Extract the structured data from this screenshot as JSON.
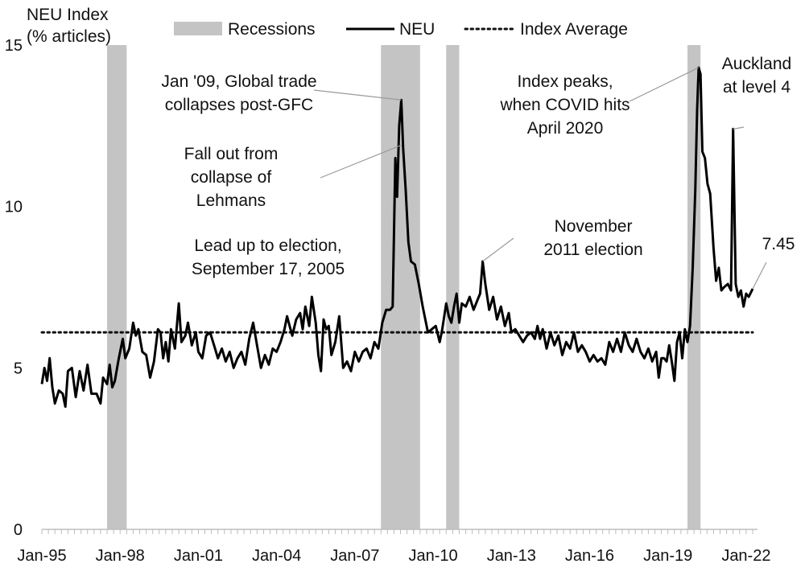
{
  "chart_data": {
    "type": "line",
    "ylabel": [
      "NEU Index",
      "(% articles)"
    ],
    "ylim": [
      0,
      15
    ],
    "yticks": [
      0,
      5,
      10,
      15
    ],
    "xticks": [
      "Jan-95",
      "Jan-98",
      "Jan-01",
      "Jan-04",
      "Jan-07",
      "Jan-10",
      "Jan-13",
      "Jan-16",
      "Jan-19",
      "Jan-22"
    ],
    "x_start": 1995.0,
    "x_end": 2022.25,
    "legend": [
      "Recessions",
      "NEU",
      "Index Average"
    ],
    "legend_position": "top",
    "average": 6.1,
    "recessions": [
      [
        1997.5,
        1998.25
      ],
      [
        2008.0,
        2009.5
      ],
      [
        2010.5,
        2011.0
      ],
      [
        2019.75,
        2020.25
      ]
    ],
    "series": [
      {
        "name": "NEU",
        "points": [
          [
            1995.0,
            4.5
          ],
          [
            1995.1,
            5.0
          ],
          [
            1995.2,
            4.6
          ],
          [
            1995.3,
            5.3
          ],
          [
            1995.4,
            4.4
          ],
          [
            1995.5,
            3.9
          ],
          [
            1995.65,
            4.3
          ],
          [
            1995.8,
            4.2
          ],
          [
            1995.9,
            3.8
          ],
          [
            1996.0,
            4.9
          ],
          [
            1996.15,
            5.0
          ],
          [
            1996.3,
            4.1
          ],
          [
            1996.45,
            4.9
          ],
          [
            1996.6,
            4.3
          ],
          [
            1996.75,
            5.1
          ],
          [
            1996.9,
            4.2
          ],
          [
            1997.1,
            4.2
          ],
          [
            1997.25,
            3.9
          ],
          [
            1997.35,
            4.7
          ],
          [
            1997.5,
            4.5
          ],
          [
            1997.6,
            5.1
          ],
          [
            1997.7,
            4.4
          ],
          [
            1997.8,
            4.6
          ],
          [
            1997.95,
            5.3
          ],
          [
            1998.1,
            5.9
          ],
          [
            1998.2,
            5.3
          ],
          [
            1998.35,
            5.6
          ],
          [
            1998.5,
            6.4
          ],
          [
            1998.6,
            6.0
          ],
          [
            1998.7,
            6.2
          ],
          [
            1998.85,
            5.5
          ],
          [
            1999.0,
            5.4
          ],
          [
            1999.15,
            4.7
          ],
          [
            1999.3,
            5.2
          ],
          [
            1999.45,
            6.2
          ],
          [
            1999.55,
            6.1
          ],
          [
            1999.65,
            5.3
          ],
          [
            1999.75,
            5.8
          ],
          [
            1999.85,
            5.2
          ],
          [
            1999.95,
            6.2
          ],
          [
            2000.1,
            5.6
          ],
          [
            2000.25,
            7.0
          ],
          [
            2000.35,
            5.8
          ],
          [
            2000.5,
            6.0
          ],
          [
            2000.6,
            6.4
          ],
          [
            2000.75,
            5.7
          ],
          [
            2000.9,
            6.1
          ],
          [
            2001.0,
            5.5
          ],
          [
            2001.15,
            5.3
          ],
          [
            2001.3,
            6.0
          ],
          [
            2001.45,
            6.1
          ],
          [
            2001.6,
            5.7
          ],
          [
            2001.75,
            5.3
          ],
          [
            2001.9,
            5.6
          ],
          [
            2002.05,
            5.2
          ],
          [
            2002.2,
            5.5
          ],
          [
            2002.35,
            5.0
          ],
          [
            2002.5,
            5.3
          ],
          [
            2002.65,
            5.5
          ],
          [
            2002.8,
            5.1
          ],
          [
            2002.95,
            5.9
          ],
          [
            2003.1,
            6.4
          ],
          [
            2003.25,
            5.7
          ],
          [
            2003.4,
            5.0
          ],
          [
            2003.55,
            5.4
          ],
          [
            2003.7,
            5.1
          ],
          [
            2003.85,
            5.6
          ],
          [
            2004.0,
            5.5
          ],
          [
            2004.15,
            5.8
          ],
          [
            2004.3,
            6.2
          ],
          [
            2004.4,
            6.6
          ],
          [
            2004.5,
            6.3
          ],
          [
            2004.6,
            6.0
          ],
          [
            2004.75,
            6.5
          ],
          [
            2004.9,
            6.7
          ],
          [
            2005.0,
            6.2
          ],
          [
            2005.1,
            6.9
          ],
          [
            2005.25,
            6.3
          ],
          [
            2005.35,
            7.2
          ],
          [
            2005.5,
            6.4
          ],
          [
            2005.6,
            5.4
          ],
          [
            2005.7,
            4.9
          ],
          [
            2005.8,
            6.5
          ],
          [
            2005.9,
            6.2
          ],
          [
            2006.0,
            6.3
          ],
          [
            2006.1,
            5.4
          ],
          [
            2006.25,
            5.8
          ],
          [
            2006.4,
            6.6
          ],
          [
            2006.55,
            5.0
          ],
          [
            2006.7,
            5.2
          ],
          [
            2006.85,
            4.9
          ],
          [
            2007.0,
            5.5
          ],
          [
            2007.15,
            5.2
          ],
          [
            2007.3,
            5.5
          ],
          [
            2007.45,
            5.6
          ],
          [
            2007.6,
            5.3
          ],
          [
            2007.75,
            5.8
          ],
          [
            2007.9,
            5.6
          ],
          [
            2008.05,
            6.4
          ],
          [
            2008.2,
            6.8
          ],
          [
            2008.35,
            6.8
          ],
          [
            2008.45,
            6.9
          ],
          [
            2008.55,
            11.5
          ],
          [
            2008.62,
            10.3
          ],
          [
            2008.7,
            12.5
          ],
          [
            2008.78,
            13.3
          ],
          [
            2008.85,
            11.8
          ],
          [
            2008.95,
            10.5
          ],
          [
            2009.05,
            8.9
          ],
          [
            2009.15,
            8.3
          ],
          [
            2009.3,
            8.2
          ],
          [
            2009.45,
            7.6
          ],
          [
            2009.6,
            6.9
          ],
          [
            2009.8,
            6.1
          ],
          [
            2009.95,
            6.2
          ],
          [
            2010.1,
            6.3
          ],
          [
            2010.25,
            5.8
          ],
          [
            2010.35,
            6.2
          ],
          [
            2010.5,
            7.0
          ],
          [
            2010.6,
            6.6
          ],
          [
            2010.7,
            6.4
          ],
          [
            2010.8,
            6.9
          ],
          [
            2010.9,
            7.3
          ],
          [
            2011.0,
            6.4
          ],
          [
            2011.1,
            7.0
          ],
          [
            2011.25,
            6.9
          ],
          [
            2011.4,
            7.2
          ],
          [
            2011.55,
            6.8
          ],
          [
            2011.7,
            7.1
          ],
          [
            2011.8,
            7.3
          ],
          [
            2011.9,
            8.3
          ],
          [
            2012.0,
            7.6
          ],
          [
            2012.15,
            6.8
          ],
          [
            2012.3,
            7.2
          ],
          [
            2012.45,
            6.5
          ],
          [
            2012.6,
            6.9
          ],
          [
            2012.75,
            6.3
          ],
          [
            2012.9,
            6.7
          ],
          [
            2013.0,
            6.1
          ],
          [
            2013.15,
            6.2
          ],
          [
            2013.3,
            6.0
          ],
          [
            2013.45,
            5.8
          ],
          [
            2013.6,
            6.0
          ],
          [
            2013.75,
            6.1
          ],
          [
            2013.9,
            5.9
          ],
          [
            2014.0,
            6.3
          ],
          [
            2014.1,
            5.9
          ],
          [
            2014.2,
            6.2
          ],
          [
            2014.35,
            5.6
          ],
          [
            2014.5,
            6.1
          ],
          [
            2014.65,
            5.7
          ],
          [
            2014.8,
            6.0
          ],
          [
            2014.95,
            5.4
          ],
          [
            2015.1,
            5.8
          ],
          [
            2015.25,
            5.6
          ],
          [
            2015.4,
            6.1
          ],
          [
            2015.55,
            5.5
          ],
          [
            2015.7,
            5.7
          ],
          [
            2015.85,
            5.5
          ],
          [
            2016.0,
            5.2
          ],
          [
            2016.15,
            5.4
          ],
          [
            2016.3,
            5.2
          ],
          [
            2016.45,
            5.3
          ],
          [
            2016.6,
            5.1
          ],
          [
            2016.75,
            5.8
          ],
          [
            2016.9,
            5.5
          ],
          [
            2017.05,
            5.9
          ],
          [
            2017.2,
            5.5
          ],
          [
            2017.35,
            6.1
          ],
          [
            2017.5,
            5.7
          ],
          [
            2017.65,
            5.5
          ],
          [
            2017.8,
            5.9
          ],
          [
            2017.95,
            5.5
          ],
          [
            2018.1,
            5.3
          ],
          [
            2018.25,
            5.6
          ],
          [
            2018.4,
            5.2
          ],
          [
            2018.55,
            5.5
          ],
          [
            2018.65,
            4.7
          ],
          [
            2018.75,
            5.3
          ],
          [
            2018.85,
            5.3
          ],
          [
            2018.95,
            5.2
          ],
          [
            2019.05,
            5.7
          ],
          [
            2019.15,
            5.2
          ],
          [
            2019.25,
            4.6
          ],
          [
            2019.35,
            5.8
          ],
          [
            2019.45,
            6.1
          ],
          [
            2019.55,
            5.3
          ],
          [
            2019.65,
            6.2
          ],
          [
            2019.75,
            5.8
          ],
          [
            2019.85,
            6.3
          ],
          [
            2019.95,
            8.1
          ],
          [
            2020.05,
            10.5
          ],
          [
            2020.12,
            13.0
          ],
          [
            2020.18,
            14.3
          ],
          [
            2020.25,
            14.1
          ],
          [
            2020.32,
            11.7
          ],
          [
            2020.42,
            11.5
          ],
          [
            2020.52,
            10.7
          ],
          [
            2020.62,
            10.4
          ],
          [
            2020.75,
            8.7
          ],
          [
            2020.85,
            7.7
          ],
          [
            2020.95,
            8.1
          ],
          [
            2021.05,
            7.4
          ],
          [
            2021.15,
            7.5
          ],
          [
            2021.3,
            7.6
          ],
          [
            2021.42,
            7.4
          ],
          [
            2021.5,
            12.4
          ],
          [
            2021.6,
            7.6
          ],
          [
            2021.7,
            7.2
          ],
          [
            2021.8,
            7.4
          ],
          [
            2021.9,
            6.9
          ],
          [
            2022.0,
            7.3
          ],
          [
            2022.1,
            7.2
          ],
          [
            2022.25,
            7.45
          ]
        ]
      }
    ],
    "annotations": [
      {
        "lines": [
          "Jan '09, Global trade",
          "collapses post-GFC"
        ],
        "target": [
          2008.78,
          13.3
        ]
      },
      {
        "lines": [
          "Fall out from",
          "collapse of",
          "Lehmans"
        ],
        "target": [
          2008.78,
          11.9
        ]
      },
      {
        "lines": [
          "Lead up to election,",
          "September 17, 2005"
        ]
      },
      {
        "lines": [
          "November",
          "2011 election"
        ],
        "target": [
          2011.9,
          8.3
        ]
      },
      {
        "lines": [
          "Index peaks,",
          "when COVID hits",
          "April 2020"
        ],
        "target": [
          2020.18,
          14.3
        ]
      },
      {
        "lines": [
          "Auckland",
          "at level 4"
        ],
        "target": [
          2021.5,
          12.4
        ]
      },
      {
        "lines": [
          "7.45"
        ],
        "target": [
          2022.25,
          7.45
        ]
      }
    ]
  }
}
